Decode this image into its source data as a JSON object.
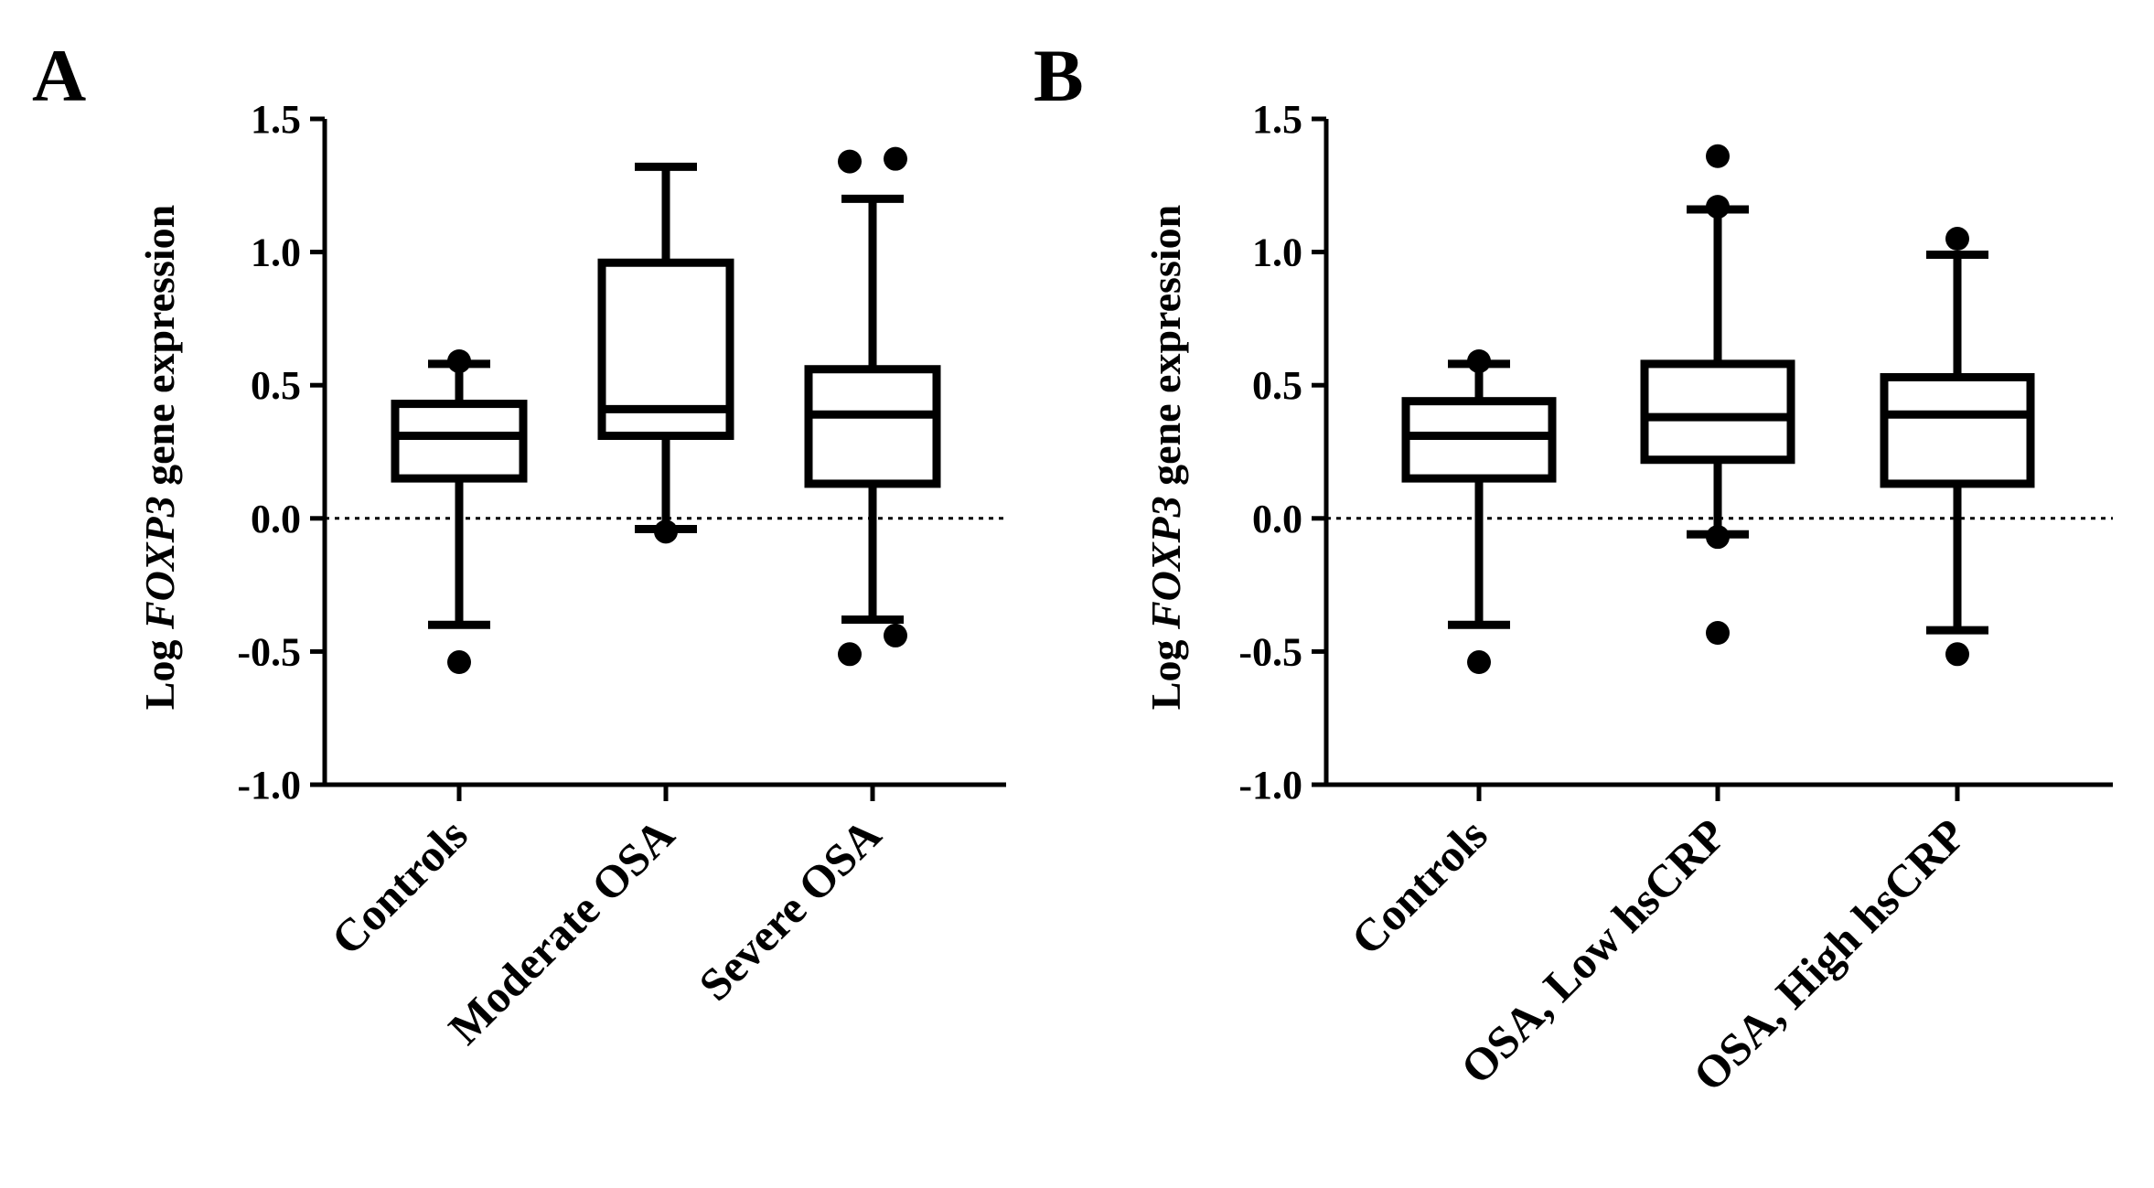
{
  "chart_data": [
    {
      "panel": "A",
      "type": "box",
      "ylabel_prefix": "Log",
      "ylabel_gene": "FOXP3",
      "ylabel_suffix": "gene expression",
      "ylim": [
        -1.0,
        1.5
      ],
      "yticks": [
        "1.5",
        "1.0",
        "0.5",
        "0.0",
        "-0.5",
        "-1.0"
      ],
      "ytick_values": [
        1.5,
        1.0,
        0.5,
        0.0,
        -0.5,
        -1.0
      ],
      "reference_line": 0.0,
      "categories": [
        "Controls",
        "Moderate OSA",
        "Severe OSA"
      ],
      "boxes": [
        {
          "name": "Controls",
          "whisker_low": -0.4,
          "q1": 0.15,
          "median": 0.31,
          "q3": 0.43,
          "whisker_high": 0.58,
          "outliers": [
            0.59,
            -0.54
          ]
        },
        {
          "name": "Moderate OSA",
          "whisker_low": -0.04,
          "q1": 0.31,
          "median": 0.41,
          "q3": 0.96,
          "whisker_high": 1.32,
          "outliers": [
            -0.05
          ]
        },
        {
          "name": "Severe OSA",
          "whisker_low": -0.38,
          "q1": 0.13,
          "median": 0.39,
          "q3": 0.56,
          "whisker_high": 1.2,
          "outliers": [
            1.34,
            1.35,
            -0.51,
            -0.44
          ]
        }
      ]
    },
    {
      "panel": "B",
      "type": "box",
      "ylabel_prefix": "Log",
      "ylabel_gene": "FOXP3",
      "ylabel_suffix": "gene expression",
      "ylim": [
        -1.0,
        1.5
      ],
      "yticks": [
        "1.5",
        "1.0",
        "0.5",
        "0.0",
        "-0.5",
        "-1.0"
      ],
      "ytick_values": [
        1.5,
        1.0,
        0.5,
        0.0,
        -0.5,
        -1.0
      ],
      "reference_line": 0.0,
      "categories": [
        "Controls",
        "OSA, Low hsCRP",
        "OSA, High hsCRP"
      ],
      "boxes": [
        {
          "name": "Controls",
          "whisker_low": -0.4,
          "q1": 0.15,
          "median": 0.31,
          "q3": 0.44,
          "whisker_high": 0.58,
          "outliers": [
            0.59,
            -0.54
          ]
        },
        {
          "name": "OSA, Low hsCRP",
          "whisker_low": -0.06,
          "q1": 0.22,
          "median": 0.38,
          "q3": 0.58,
          "whisker_high": 1.16,
          "outliers": [
            1.36,
            1.17,
            -0.07,
            -0.43
          ]
        },
        {
          "name": "OSA, High hsCRP",
          "whisker_low": -0.42,
          "q1": 0.13,
          "median": 0.39,
          "q3": 0.53,
          "whisker_high": 0.99,
          "outliers": [
            1.05,
            -0.51
          ]
        }
      ]
    }
  ]
}
